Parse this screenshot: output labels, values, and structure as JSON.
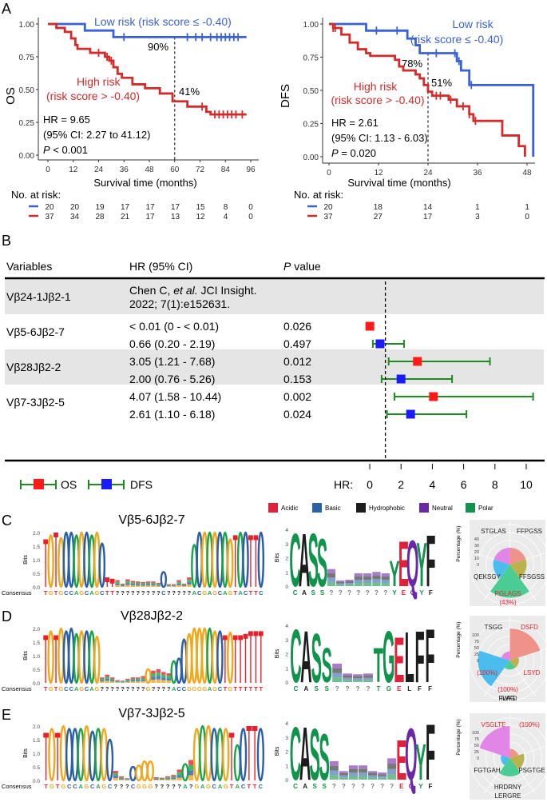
{
  "panels": {
    "A": "A",
    "B": "B",
    "C": "C",
    "D": "D",
    "E": "E"
  },
  "colors": {
    "low": "#3a62d6",
    "high": "#d42a2a",
    "os": "#ff1a1a",
    "dfs": "#1a1aff",
    "ci": "#1e8a22",
    "shade": "#e5e5e5",
    "A": "#1a9fd9",
    "C": "#2a5ea8",
    "G": "#f2a71b",
    "T": "#e8202c",
    "acidic": "#e0213a",
    "basic": "#2a62a8",
    "hydrophobic": "#1c1c1c",
    "neutral": "#6a27a6",
    "polar": "#10934a"
  },
  "km_os": {
    "type": "line",
    "ylabel": "OS",
    "xlabel": "Survival time (months)",
    "xticks": [
      0,
      12,
      24,
      36,
      48,
      60,
      72,
      84,
      96
    ],
    "yticks": [
      "0.00",
      "0.25",
      "0.50",
      "0.75",
      "1.00"
    ],
    "xlim": [
      0,
      96
    ],
    "ylim": [
      0,
      1
    ],
    "low_label": "Low risk (risk score ≤ -0.40)",
    "high_label_1": "High risk",
    "high_label_2": "(risk score > -0.40)",
    "ref_time": 60,
    "low_pct": "90%",
    "high_pct": "41%",
    "hr": "HR = 9.65",
    "ci": "(95% CI: 2.27 to 41.12)",
    "p_italic": "P",
    "p_rest": " < 0.001",
    "risk_title": "No. at risk:",
    "risk_low": [
      20,
      20,
      19,
      17,
      17,
      17,
      15,
      8,
      0
    ],
    "risk_high": [
      37,
      34,
      28,
      21,
      17,
      13,
      12,
      4,
      0
    ],
    "series": [
      {
        "name": "Low risk",
        "steps": [
          [
            0,
            1
          ],
          [
            17.5,
            1
          ],
          [
            17.5,
            0.95
          ],
          [
            31,
            0.95
          ],
          [
            31,
            0.9
          ],
          [
            94,
            0.9
          ]
        ],
        "censors": [
          36,
          66,
          70,
          73,
          77,
          80,
          82,
          84,
          86,
          88,
          90
        ]
      },
      {
        "name": "High risk",
        "steps": [
          [
            0,
            1
          ],
          [
            4,
            1
          ],
          [
            4,
            0.97
          ],
          [
            8,
            0.97
          ],
          [
            8,
            0.94
          ],
          [
            11,
            0.94
          ],
          [
            11,
            0.89
          ],
          [
            13,
            0.89
          ],
          [
            13,
            0.84
          ],
          [
            14,
            0.84
          ],
          [
            14,
            0.81
          ],
          [
            20,
            0.81
          ],
          [
            20,
            0.78
          ],
          [
            27,
            0.78
          ],
          [
            27,
            0.75
          ],
          [
            29,
            0.75
          ],
          [
            29,
            0.72
          ],
          [
            31,
            0.72
          ],
          [
            31,
            0.67
          ],
          [
            33,
            0.67
          ],
          [
            33,
            0.62
          ],
          [
            35,
            0.62
          ],
          [
            35,
            0.59
          ],
          [
            40,
            0.59
          ],
          [
            40,
            0.54
          ],
          [
            46,
            0.54
          ],
          [
            46,
            0.51
          ],
          [
            53,
            0.51
          ],
          [
            53,
            0.47
          ],
          [
            59,
            0.47
          ],
          [
            59,
            0.41
          ],
          [
            66,
            0.41
          ],
          [
            66,
            0.37
          ],
          [
            75,
            0.37
          ],
          [
            75,
            0.33
          ],
          [
            77,
            0.33
          ],
          [
            77,
            0.31
          ],
          [
            94,
            0.31
          ]
        ],
        "censors": [
          24,
          28,
          30,
          73,
          79,
          81,
          83,
          85,
          87,
          89,
          92
        ]
      }
    ]
  },
  "km_dfs": {
    "type": "line",
    "ylabel": "DFS",
    "xlabel": "Survival time (months)",
    "xticks": [
      0,
      12,
      24,
      36,
      48
    ],
    "yticks": [
      "0.00",
      "0.25",
      "0.50",
      "0.75",
      "1.00"
    ],
    "xlim": [
      0,
      48
    ],
    "ylim": [
      0,
      1
    ],
    "low_label_1": "Low risk",
    "low_label_2": "(risk score ≤ -0.40)",
    "high_label_1": "High risk",
    "high_label_2": "(risk score > -0.40)",
    "ref_time": 24,
    "low_pct": "78%",
    "high_pct": "51%",
    "hr": "HR = 2.61",
    "ci": "(95% CI: 1.13 - 6.03)",
    "p_italic": "P",
    "p_rest": " = 0.020",
    "risk_title": "No. at risk:",
    "risk_low": [
      20,
      18,
      14,
      1,
      1
    ],
    "risk_high": [
      37,
      27,
      17,
      3,
      0
    ],
    "series": [
      {
        "name": "Low risk",
        "steps": [
          [
            0,
            1
          ],
          [
            9,
            1
          ],
          [
            9,
            0.95
          ],
          [
            19,
            0.95
          ],
          [
            19,
            0.89
          ],
          [
            21,
            0.89
          ],
          [
            21,
            0.84
          ],
          [
            22,
            0.84
          ],
          [
            22,
            0.78
          ],
          [
            31,
            0.78
          ],
          [
            31,
            0.72
          ],
          [
            32,
            0.72
          ],
          [
            32,
            0.65
          ],
          [
            34,
            0.65
          ],
          [
            34,
            0.54
          ],
          [
            49.5,
            0.54
          ],
          [
            49.5,
            0
          ]
        ],
        "censors": [
          11.5,
          16.5,
          26,
          30.5,
          31.5,
          34.5
        ]
      },
      {
        "name": "High risk",
        "steps": [
          [
            0,
            1
          ],
          [
            1,
            1
          ],
          [
            1,
            0.97
          ],
          [
            3,
            0.97
          ],
          [
            3,
            0.92
          ],
          [
            5,
            0.92
          ],
          [
            5,
            0.86
          ],
          [
            7,
            0.86
          ],
          [
            7,
            0.81
          ],
          [
            9,
            0.81
          ],
          [
            9,
            0.78
          ],
          [
            10,
            0.78
          ],
          [
            10,
            0.76
          ],
          [
            16,
            0.76
          ],
          [
            16,
            0.73
          ],
          [
            17,
            0.73
          ],
          [
            17,
            0.68
          ],
          [
            18,
            0.68
          ],
          [
            18,
            0.65
          ],
          [
            21,
            0.65
          ],
          [
            21,
            0.62
          ],
          [
            22,
            0.62
          ],
          [
            22,
            0.59
          ],
          [
            23,
            0.59
          ],
          [
            23,
            0.54
          ],
          [
            24,
            0.54
          ],
          [
            24,
            0.49
          ],
          [
            25,
            0.49
          ],
          [
            25,
            0.46
          ],
          [
            29,
            0.46
          ],
          [
            29,
            0.43
          ],
          [
            31,
            0.43
          ],
          [
            31,
            0.38
          ],
          [
            34,
            0.38
          ],
          [
            34,
            0.32
          ],
          [
            35,
            0.32
          ],
          [
            35,
            0.27
          ],
          [
            42,
            0.27
          ],
          [
            42,
            0.16
          ],
          [
            46,
            0.16
          ],
          [
            46,
            0.08
          ],
          [
            47.5,
            0.08
          ],
          [
            47.5,
            0
          ]
        ],
        "censors": [
          1,
          1.5,
          26,
          27,
          29.5,
          32.5,
          34,
          35.5
        ]
      }
    ]
  },
  "forest": {
    "type": "table",
    "headers": {
      "variables": "Variables",
      "hr": "HR (95% CI)",
      "p_italic": "P",
      "p_rest": " value"
    },
    "rows": [
      {
        "variable": "Vβ24-1Jβ2-1",
        "shaded": true,
        "citation_1a": "Chen C, ",
        "citation_1b": "et al.",
        "citation_1c": " JCI Insight.",
        "citation_2": "2022; 7(1):e152631."
      },
      {
        "variable": "Vβ5-6Jβ2-7",
        "shaded": false,
        "os": {
          "text": "< 0.01 (0 - < 0.01)",
          "p": "0.026",
          "hr": 0.01,
          "lo": 0,
          "hi": 0.01
        },
        "dfs": {
          "text": "0.66 (0.20 - 2.19)",
          "p": "0.497",
          "hr": 0.66,
          "lo": 0.2,
          "hi": 2.19
        }
      },
      {
        "variable": "Vβ28Jβ2-2",
        "shaded": true,
        "os": {
          "text": "3.05 (1.21 - 7.68)",
          "p": "0.012",
          "hr": 3.05,
          "lo": 1.21,
          "hi": 7.68
        },
        "dfs": {
          "text": "2.00 (0.76 - 5.26)",
          "p": "0.153",
          "hr": 2.0,
          "lo": 0.76,
          "hi": 5.26
        }
      },
      {
        "variable": "Vβ7-3Jβ2-5",
        "shaded": false,
        "os": {
          "text": "4.07 (1.58 - 10.44)",
          "p": "0.002",
          "hr": 4.07,
          "lo": 1.58,
          "hi": 10.44
        },
        "dfs": {
          "text": "2.61 (1.10 - 6.18)",
          "p": "0.024",
          "hr": 2.61,
          "lo": 1.1,
          "hi": 6.18
        }
      }
    ],
    "legend_os": "OS",
    "legend_dfs": "DFS",
    "axis_label": "HR:",
    "xticks": [
      0,
      2,
      4,
      6,
      8,
      10
    ],
    "ref": 1
  },
  "aa_legend": [
    {
      "label": "Acidic",
      "key": "acidic"
    },
    {
      "label": "Basic",
      "key": "basic"
    },
    {
      "label": "Hydrophobic",
      "key": "hydrophobic"
    },
    {
      "label": "Neutral",
      "key": "neutral"
    },
    {
      "label": "Polar",
      "key": "polar"
    }
  ],
  "logos": [
    {
      "title": "Vβ5-6Jβ2-7",
      "nt_ylabel": "Bits",
      "nt_yticks": [
        "0.0",
        "0.5",
        "1.0",
        "1.5",
        "2.0"
      ],
      "consensus_label": "Consensus",
      "consensus": "TGTGCCAGCAGCTT?????????C?????ACGAGCAGTACTTC",
      "nt_heights": [
        1.75,
        1.9,
        2,
        1.8,
        2,
        2,
        1.9,
        2,
        2,
        1.9,
        2,
        1.6,
        0.35,
        0.3,
        0.25,
        0.12,
        0.28,
        0.22,
        0.2,
        0.18,
        0.2,
        0.2,
        0.15,
        0.55,
        0.1,
        0.1,
        0.25,
        0.12,
        0.35,
        1.55,
        2,
        2,
        2,
        2,
        2,
        2,
        1.75,
        1.9,
        2,
        2,
        1.9,
        1.9,
        2
      ],
      "aa_ylabel": "Bits",
      "aa_yticks": [
        "0",
        "1",
        "2",
        "3",
        "4"
      ],
      "aa_consensus": [
        "C",
        "A",
        "S",
        "S",
        "?",
        "?",
        "?",
        "?",
        "?",
        "?",
        "?",
        "Y",
        "E",
        "Q",
        "Y",
        "F"
      ],
      "aa_heights": [
        4,
        4,
        4,
        3.6,
        1.2,
        0.4,
        0.45,
        0.9,
        0.9,
        1.0,
        0.9,
        1.9,
        3.4,
        3.5,
        3.3,
        3.9
      ],
      "pie_ylabel": "Percentage (%)",
      "pie_yticks": [
        "0",
        "10",
        "20",
        "30",
        "40"
      ],
      "pie_labels": [
        {
          "text": "STGLAS",
          "highlight": false
        },
        {
          "text": "FFPGSS",
          "highlight": false
        },
        {
          "text": "QEKSGY",
          "highlight": false
        },
        {
          "text": "FFSGSS",
          "highlight": false
        },
        {
          "text": "PGLAGS",
          "highlight": true
        },
        {
          "text": "(43%)",
          "highlight": true
        }
      ],
      "pie_slices": [
        {
          "name": "FFPGSS",
          "pct": 11,
          "color": "#f08a80"
        },
        {
          "name": "FFSGSS",
          "pct": 11,
          "color": "#b5ac3a"
        },
        {
          "name": "PGLAGS",
          "pct": 43,
          "color": "#3bc98c"
        },
        {
          "name": "QEKSGY",
          "pct": 11,
          "color": "#39b8ee"
        },
        {
          "name": "STGLAS",
          "pct": 11,
          "color": "#e07be6"
        }
      ]
    },
    {
      "title": "Vβ28Jβ2-2",
      "nt_ylabel": "Bits",
      "nt_yticks": [
        "0.0",
        "0.5",
        "1.0",
        "1.5",
        "2.0"
      ],
      "consensus_label": "Consensus",
      "consensus": "TGTGCCAGCAG?????????G????ACCGGGGAGCTGTTTTTT",
      "nt_heights": [
        1.75,
        1.9,
        1.75,
        2,
        1.9,
        2,
        1.8,
        1.9,
        1.9,
        1.9,
        1.7,
        0.2,
        0.3,
        0.2,
        0.1,
        0.08,
        0.15,
        0.2,
        0.2,
        0.25,
        0.5,
        0.45,
        0.5,
        0.4,
        0.35,
        0.8,
        0.9,
        1.6,
        1.8,
        2,
        2,
        2,
        2,
        1.9,
        1.9,
        1.75,
        1.85,
        1.75,
        1.75,
        1.8,
        1.9,
        1.9,
        1.9
      ],
      "aa_ylabel": "Bits",
      "aa_yticks": [
        "0",
        "1",
        "2",
        "3",
        "4"
      ],
      "aa_consensus": [
        "C",
        "A",
        "S",
        "S",
        "?",
        "?",
        "?",
        "?",
        "T",
        "G",
        "E",
        "L",
        "F",
        "F"
      ],
      "aa_heights": [
        4,
        3.9,
        3.7,
        2.6,
        1.3,
        0.6,
        0.55,
        0.6,
        2.6,
        3.9,
        3.4,
        3.8,
        3.9,
        4
      ],
      "pie_ylabel": "Percentage (%)",
      "pie_yticks": [
        "0",
        "25",
        "50",
        "75",
        "100"
      ],
      "pie_labels": [
        {
          "text": "TSGG",
          "highlight": false
        },
        {
          "text": "DSFD",
          "highlight": true
        },
        {
          "text": "(100%)",
          "highlight": true
        },
        {
          "text": "LSYD",
          "highlight": true
        },
        {
          "text": "(100%)",
          "highlight": true
        },
        {
          "text": "FWFD",
          "highlight": false
        },
        {
          "text": "ILAG",
          "highlight": false
        }
      ],
      "pie_slices": [
        {
          "name": "DSFD",
          "pct": 100,
          "color": "#f08a80"
        },
        {
          "name": "FWFD",
          "pct": 8,
          "color": "#b5ac3a"
        },
        {
          "name": "ILAG",
          "pct": 8,
          "color": "#3bc98c"
        },
        {
          "name": "LSYD",
          "pct": 100,
          "color": "#39b8ee"
        },
        {
          "name": "TSGG",
          "pct": 8,
          "color": "#e07be6"
        }
      ]
    },
    {
      "title": "Vβ7-3Jβ2-5",
      "nt_ylabel": "Bits",
      "nt_yticks": [
        "0.0",
        "0.5",
        "1.0",
        "1.5",
        "2.0"
      ],
      "consensus_label": "Consensus",
      "consensus": "TGTGCCAGCAGC???CGGG?????A?GAGCAGTACTTC",
      "nt_heights": [
        1.75,
        1.9,
        1.75,
        2,
        1.9,
        1.9,
        1.9,
        2,
        1.8,
        1.9,
        1.9,
        1.5,
        0.35,
        0.15,
        0.08,
        0.5,
        0.55,
        0.7,
        0.7,
        0.12,
        0.1,
        0.15,
        0.2,
        0.4,
        0.6,
        0.75,
        1.9,
        2,
        2,
        1.9,
        1.9,
        1.9,
        1.75,
        1.3,
        1.9,
        2,
        2,
        1.9
      ],
      "aa_ylabel": "Bits",
      "aa_yticks": [
        "0",
        "1",
        "2",
        "3",
        "4"
      ],
      "aa_consensus": [
        "C",
        "A",
        "S",
        "S",
        "?",
        "?",
        "?",
        "?",
        "?",
        "?",
        "?",
        "E",
        "Q",
        "Y",
        "F"
      ],
      "aa_heights": [
        4,
        4,
        3.9,
        3.5,
        1.3,
        0.6,
        1.0,
        1.0,
        0.6,
        0.5,
        1.5,
        3.0,
        3.9,
        2.7,
        4.2
      ],
      "pie_ylabel": "Percentage (%)",
      "pie_yticks": [
        "0",
        "25",
        "50",
        "75",
        "100"
      ],
      "pie_labels": [
        {
          "text": "VSGLTE",
          "highlight": true
        },
        {
          "text": "(100%)",
          "highlight": true
        },
        {
          "text": "FGTGAH",
          "highlight": false
        },
        {
          "text": "PSGTGE",
          "highlight": false
        },
        {
          "text": "HRDRNY",
          "highlight": false
        },
        {
          "text": "LERGRE",
          "highlight": false
        }
      ],
      "pie_slices": [
        {
          "name": "FGTGAH",
          "pct": 8,
          "color": "#f08a80"
        },
        {
          "name": "HRDRNY",
          "pct": 20,
          "color": "#b5ac3a"
        },
        {
          "name": "LERGRE",
          "pct": 33,
          "color": "#3bc98c"
        },
        {
          "name": "PSGTGE",
          "pct": 8,
          "color": "#39b8ee"
        },
        {
          "name": "VSGLTE",
          "pct": 100,
          "color": "#e07be6"
        }
      ]
    }
  ]
}
